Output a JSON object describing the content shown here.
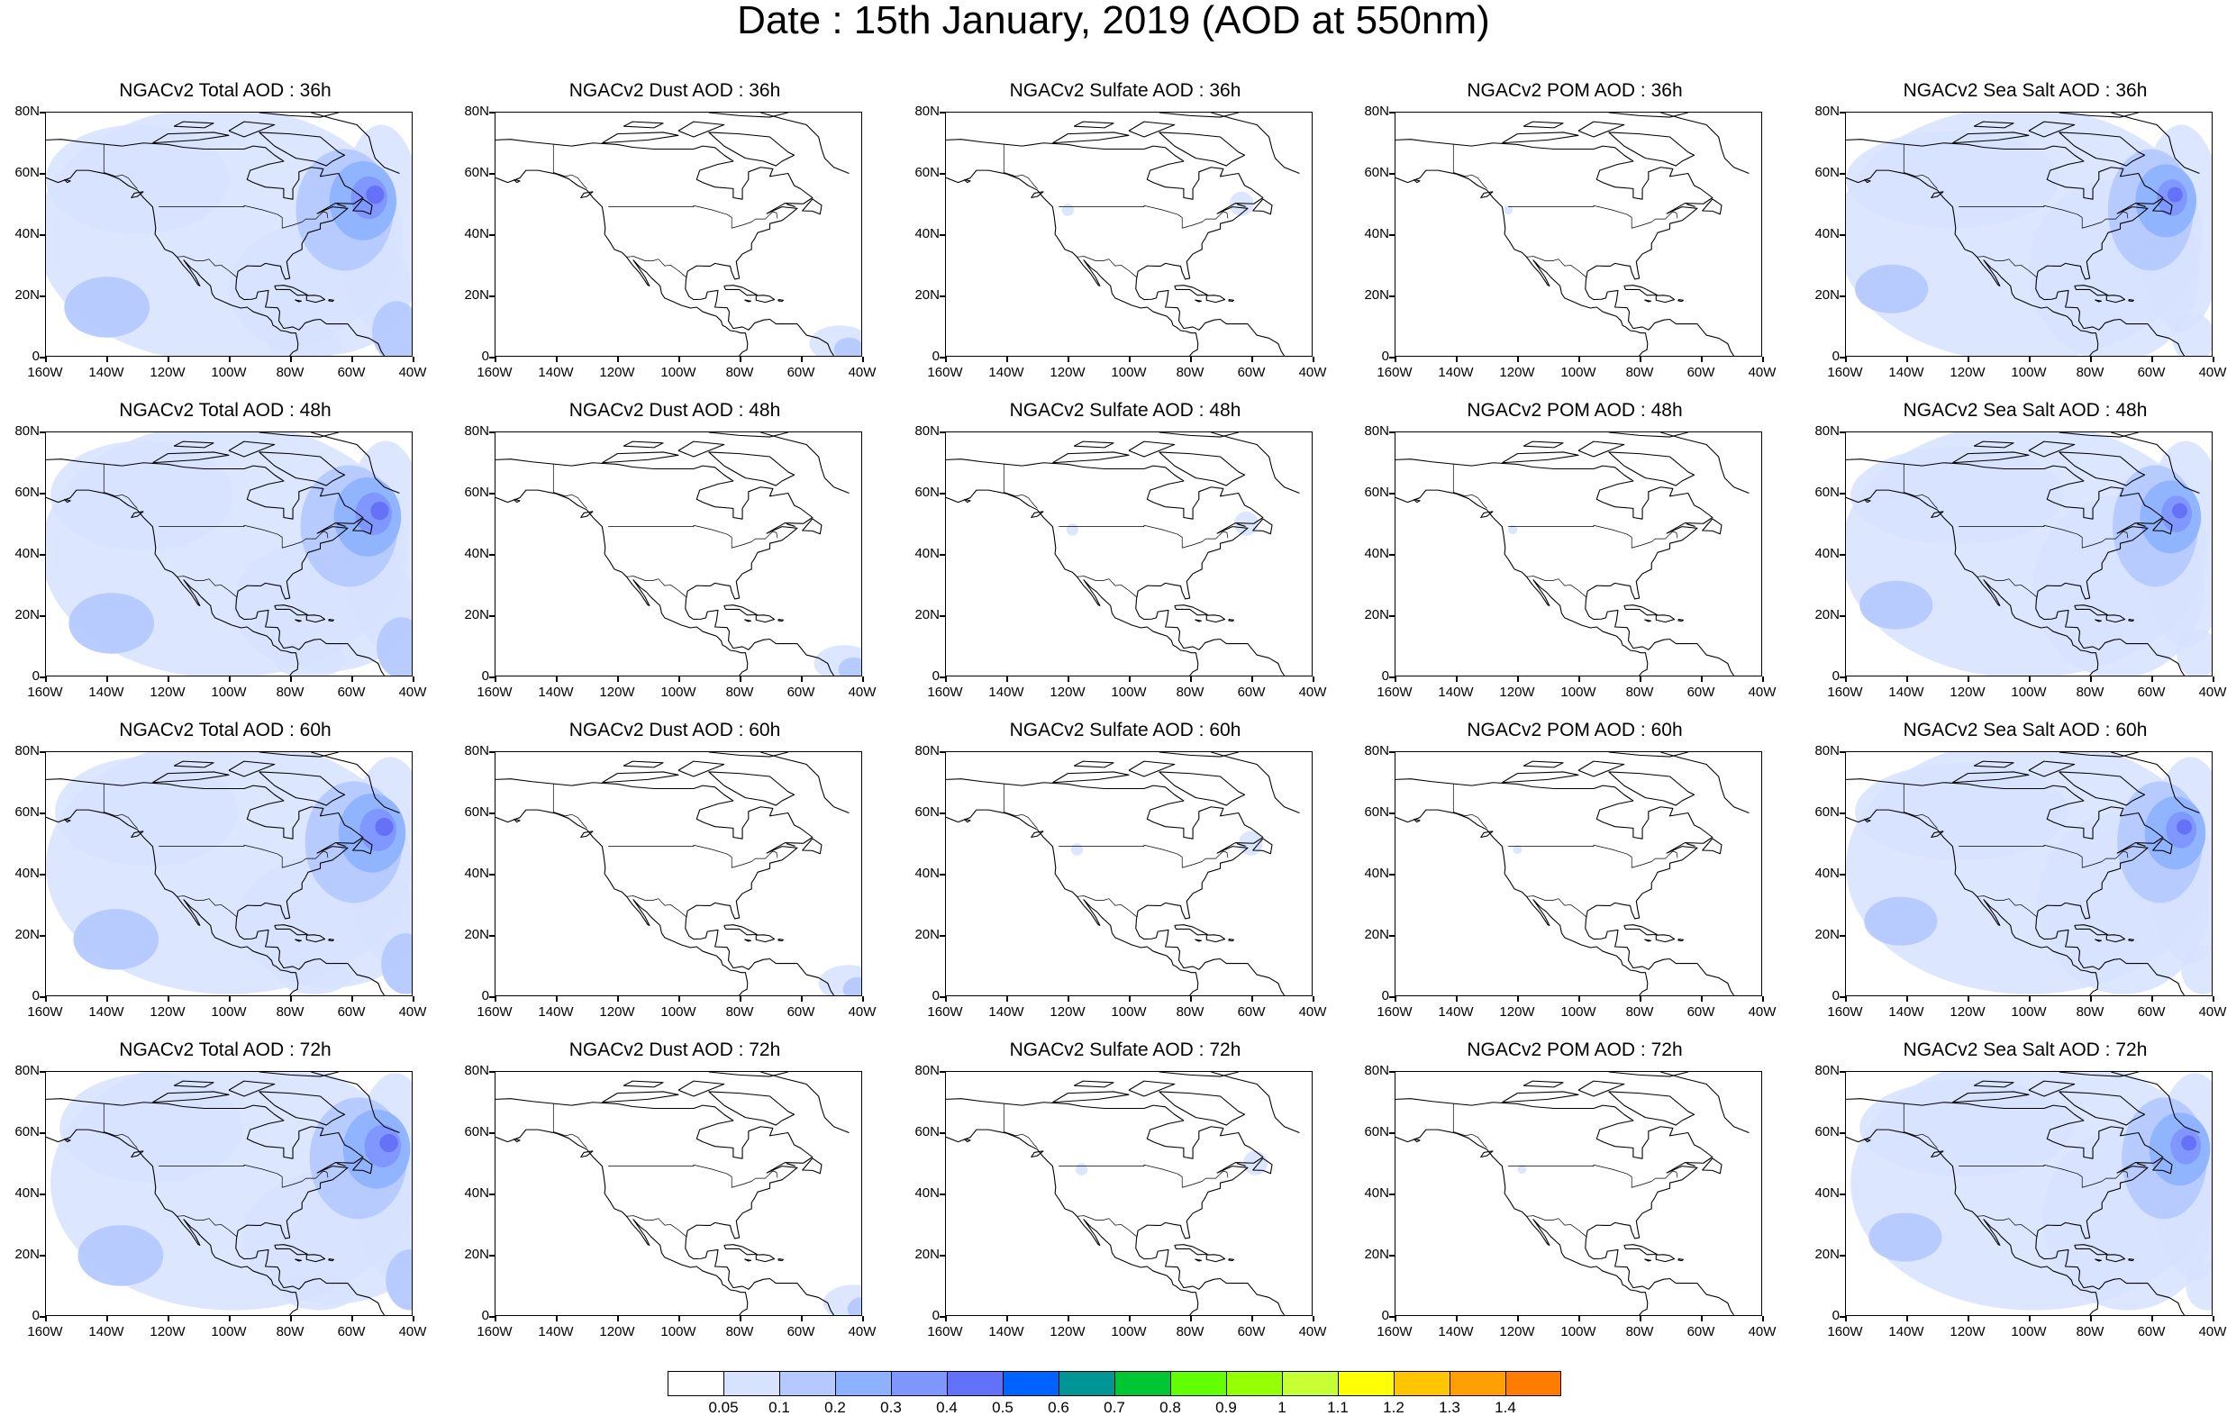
{
  "title": "Date : 15th January, 2019 (AOD at 550nm)",
  "map_axes": {
    "lat_ticks": [
      "80N",
      "60N",
      "40N",
      "20N",
      "0"
    ],
    "lon_ticks": [
      "160W",
      "140W",
      "120W",
      "100W",
      "80W",
      "60W",
      "40W"
    ]
  },
  "panels": [
    {
      "title": "NGACv2 Total AOD : 36h",
      "field": "total",
      "forecast_hour": 36
    },
    {
      "title": "NGACv2 Dust AOD : 36h",
      "field": "dust",
      "forecast_hour": 36
    },
    {
      "title": "NGACv2 Sulfate AOD : 36h",
      "field": "sulfate",
      "forecast_hour": 36
    },
    {
      "title": "NGACv2 POM AOD : 36h",
      "field": "pom",
      "forecast_hour": 36
    },
    {
      "title": "NGACv2 Sea Salt AOD : 36h",
      "field": "seasalt",
      "forecast_hour": 36
    },
    {
      "title": "NGACv2 Total AOD : 48h",
      "field": "total",
      "forecast_hour": 48
    },
    {
      "title": "NGACv2 Dust AOD : 48h",
      "field": "dust",
      "forecast_hour": 48
    },
    {
      "title": "NGACv2 Sulfate AOD : 48h",
      "field": "sulfate",
      "forecast_hour": 48
    },
    {
      "title": "NGACv2 POM AOD : 48h",
      "field": "pom",
      "forecast_hour": 48
    },
    {
      "title": "NGACv2 Sea Salt AOD : 48h",
      "field": "seasalt",
      "forecast_hour": 48
    },
    {
      "title": "NGACv2 Total AOD : 60h",
      "field": "total",
      "forecast_hour": 60
    },
    {
      "title": "NGACv2 Dust AOD : 60h",
      "field": "dust",
      "forecast_hour": 60
    },
    {
      "title": "NGACv2 Sulfate AOD : 60h",
      "field": "sulfate",
      "forecast_hour": 60
    },
    {
      "title": "NGACv2 POM AOD : 60h",
      "field": "pom",
      "forecast_hour": 60
    },
    {
      "title": "NGACv2 Sea Salt AOD : 60h",
      "field": "seasalt",
      "forecast_hour": 60
    },
    {
      "title": "NGACv2 Total AOD : 72h",
      "field": "total",
      "forecast_hour": 72
    },
    {
      "title": "NGACv2 Dust AOD : 72h",
      "field": "dust",
      "forecast_hour": 72
    },
    {
      "title": "NGACv2 Sulfate AOD : 72h",
      "field": "sulfate",
      "forecast_hour": 72
    },
    {
      "title": "NGACv2 POM AOD : 72h",
      "field": "pom",
      "forecast_hour": 72
    },
    {
      "title": "NGACv2 Sea Salt  AOD : 72h",
      "field": "seasalt",
      "forecast_hour": 72
    }
  ],
  "colorbar": {
    "labels": [
      "0.05",
      "0.1",
      "0.2",
      "0.3",
      "0.4",
      "0.5",
      "0.6",
      "0.7",
      "0.8",
      "0.9",
      "1",
      "1.1",
      "1.2",
      "1.3",
      "1.4"
    ],
    "colors": [
      "#ffffff",
      "#d6e2ff",
      "#b5c9ff",
      "#8eb2ff",
      "#7f96ff",
      "#6370f8",
      "#0063ff",
      "#009696",
      "#00c633",
      "#63ff00",
      "#96ff00",
      "#c6ff33",
      "#ffff00",
      "#ffc600",
      "#ffa000",
      "#ff7c00",
      "#ff1900"
    ]
  }
}
